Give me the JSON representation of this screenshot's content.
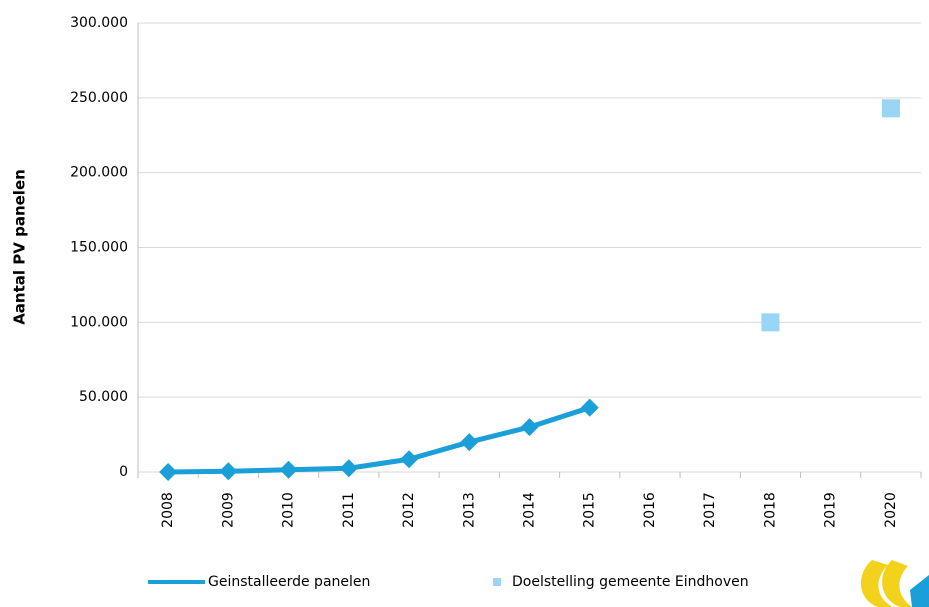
{
  "chart_data": {
    "type": "line",
    "y_label": "Aantal PV panelen",
    "categories": [
      "2008",
      "2009",
      "2010",
      "2011",
      "2012",
      "2013",
      "2014",
      "2015",
      "2016",
      "2017",
      "2018",
      "2019",
      "2020"
    ],
    "series": [
      {
        "name": "Geinstalleerde panelen",
        "color": "#1a9fd9",
        "marker": "diamond",
        "values": [
          0,
          500,
          1500,
          2500,
          8500,
          20000,
          30000,
          43000,
          null,
          null,
          null,
          null,
          null
        ]
      },
      {
        "name": "Doelstelling gemeente Eindhoven",
        "color": "#99d5f5",
        "marker": "square",
        "values": [
          null,
          null,
          null,
          null,
          null,
          null,
          null,
          null,
          null,
          null,
          100000,
          null,
          243000
        ]
      }
    ],
    "ylim": [
      0,
      300000
    ],
    "yticks": [
      0,
      {
        "value": 50000,
        "label": "50.000"
      },
      {
        "value": 100000,
        "label": "100.000"
      },
      {
        "value": 150000,
        "label": "150.000"
      },
      {
        "value": 200000,
        "label": "200.000"
      },
      {
        "value": 250000,
        "label": "250.000"
      },
      {
        "value": 300000,
        "label": "300.000"
      }
    ],
    "grid": true
  }
}
